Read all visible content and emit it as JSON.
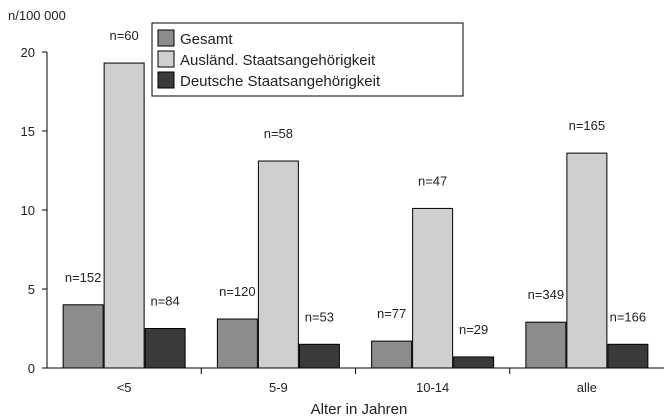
{
  "chart_data": {
    "type": "bar",
    "ylabel": "n/100 000",
    "xlabel": "Alter in Jahren",
    "ylim": [
      0,
      20
    ],
    "yticks": [
      0,
      5,
      10,
      15,
      20
    ],
    "grid": false,
    "legend_position": "top-center",
    "categories": [
      "<5",
      "5-9",
      "10-14",
      "alle"
    ],
    "series": [
      {
        "name": "Gesamt",
        "color": "#8c8c8c",
        "values": [
          4.0,
          3.1,
          1.7,
          2.9
        ],
        "labels": [
          "n=152",
          "n=120",
          "n=77",
          "n=349"
        ]
      },
      {
        "name": "Ausländ. Staatsangehörigkeit",
        "color": "#cfcfcf",
        "values": [
          19.3,
          13.1,
          10.1,
          13.6
        ],
        "labels": [
          "n=60",
          "n=58",
          "n=47",
          "n=165"
        ]
      },
      {
        "name": "Deutsche Staatsangehörigkeit",
        "color": "#3a3a3a",
        "values": [
          2.5,
          1.5,
          0.7,
          1.5
        ],
        "labels": [
          "n=84",
          "n=53",
          "n=29",
          "n=166"
        ]
      }
    ]
  }
}
